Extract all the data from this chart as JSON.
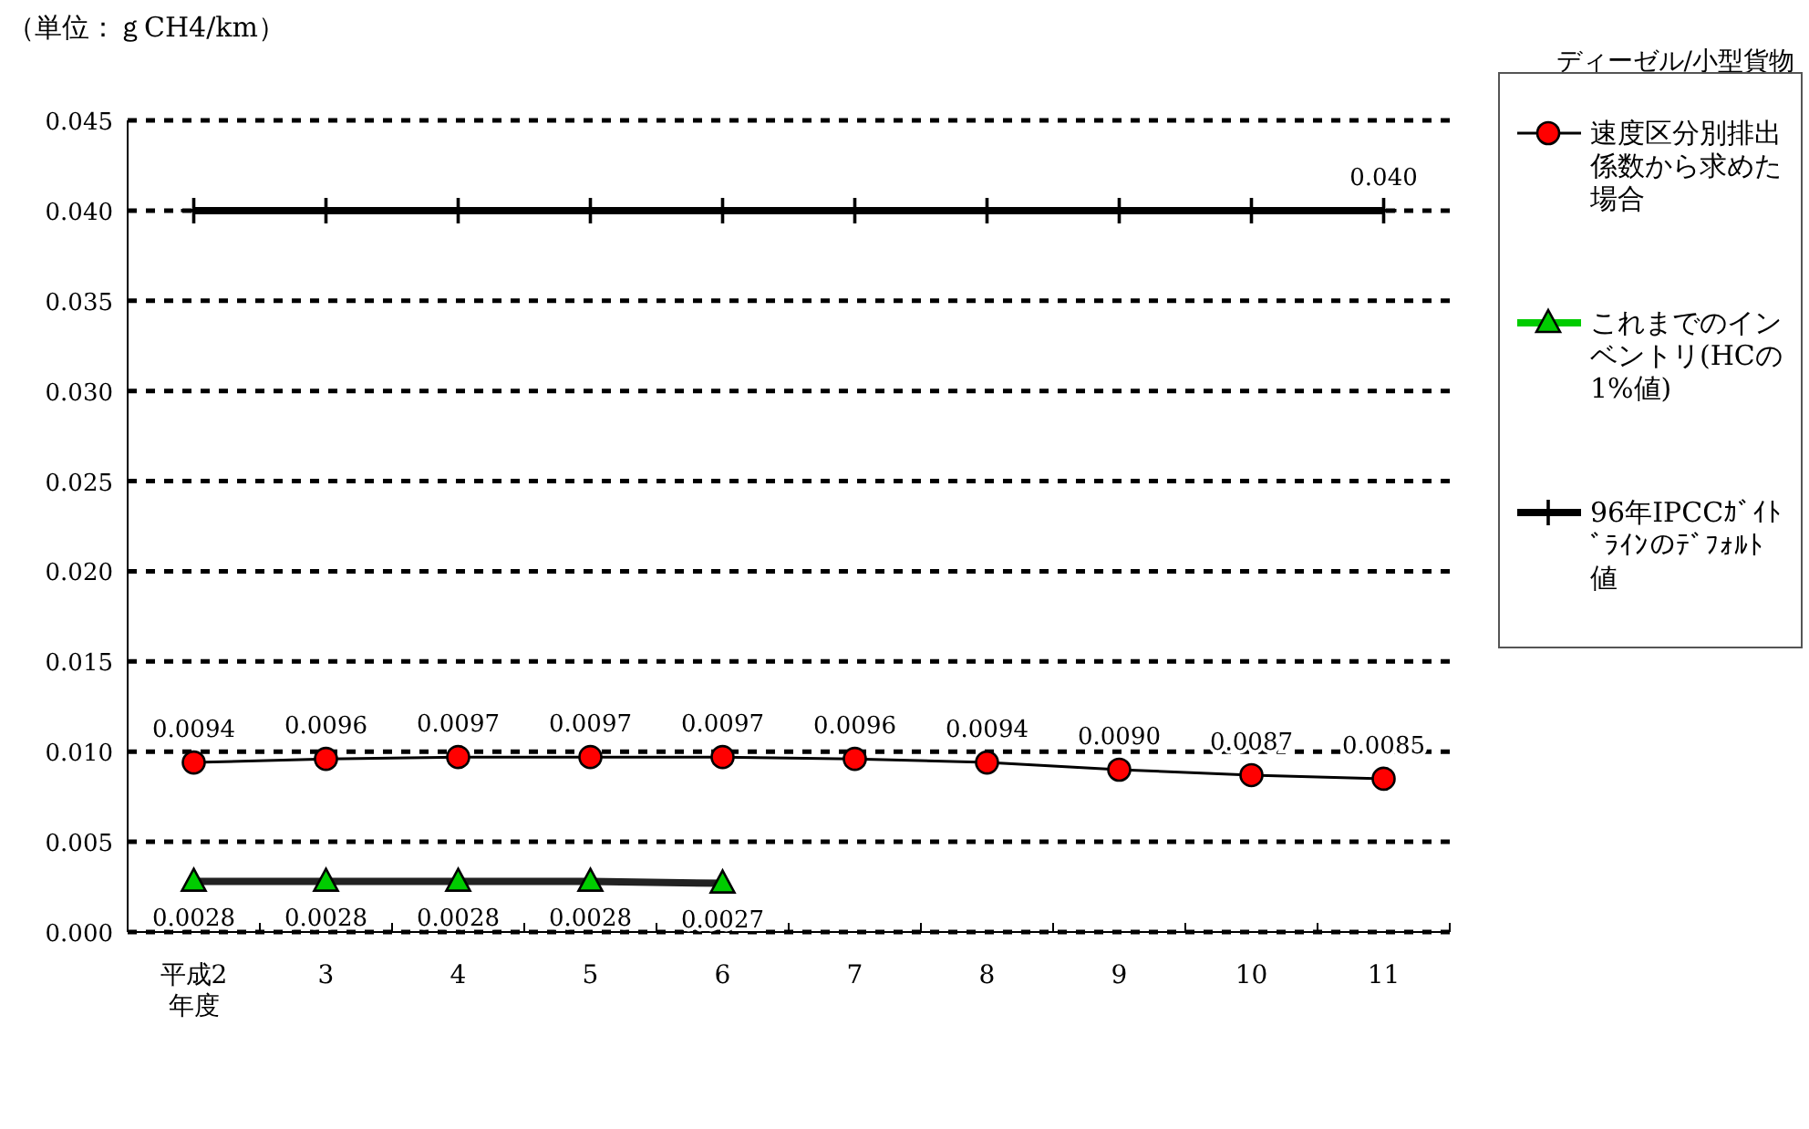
{
  "chart_data": {
    "type": "line",
    "title": "ディーゼル/小型貨物",
    "ylabel": "（単位：ｇCH4/km）",
    "categories": [
      "平成2年度",
      "3",
      "4",
      "5",
      "6",
      "7",
      "8",
      "9",
      "10",
      "11"
    ],
    "series": [
      {
        "name": "速度区分別排出係数から求めた場合",
        "color": "#ff0000",
        "marker": "circle",
        "values": [
          0.0094,
          0.0096,
          0.0097,
          0.0097,
          0.0097,
          0.0096,
          0.0094,
          0.009,
          0.0087,
          0.0085
        ],
        "value_labels": [
          "0.0094",
          "0.0096",
          "0.0097",
          "0.0097",
          "0.0097",
          "0.0096",
          "0.0094",
          "0.0090",
          "0.0087",
          "0.0085"
        ]
      },
      {
        "name": "これまでのインベントリ(HCの1%値)",
        "color": "#00cc00",
        "marker": "triangle",
        "values": [
          0.0028,
          0.0028,
          0.0028,
          0.0028,
          0.0027,
          null,
          null,
          null,
          null,
          null
        ],
        "value_labels": [
          "0.0028",
          "0.0028",
          "0.0028",
          "0.0028",
          "0.0027",
          null,
          null,
          null,
          null,
          null
        ]
      },
      {
        "name": "96年IPCCｶﾞｲﾄﾞﾗｲﾝのﾃﾞﾌｫﾙﾄ値",
        "color": "#000000",
        "marker": "cross",
        "values": [
          0.04,
          0.04,
          0.04,
          0.04,
          0.04,
          0.04,
          0.04,
          0.04,
          0.04,
          0.04
        ],
        "value_labels": [
          null,
          null,
          null,
          null,
          null,
          null,
          null,
          null,
          null,
          "0.040"
        ]
      }
    ],
    "ylim": [
      0,
      0.045
    ],
    "yticks": [
      {
        "value": 0,
        "label": "0.000"
      },
      {
        "value": 0.005,
        "label": "0.005"
      },
      {
        "value": 0.01,
        "label": "0.010"
      },
      {
        "value": 0.015,
        "label": "0.015"
      },
      {
        "value": 0.02,
        "label": "0.020"
      },
      {
        "value": 0.025,
        "label": "0.025"
      },
      {
        "value": 0.03,
        "label": "0.030"
      },
      {
        "value": 0.035,
        "label": "0.035"
      },
      {
        "value": 0.04,
        "label": "0.040"
      },
      {
        "value": 0.045,
        "label": "0.045"
      }
    ],
    "grid": "y",
    "legend": "right",
    "line_style": "solid"
  }
}
